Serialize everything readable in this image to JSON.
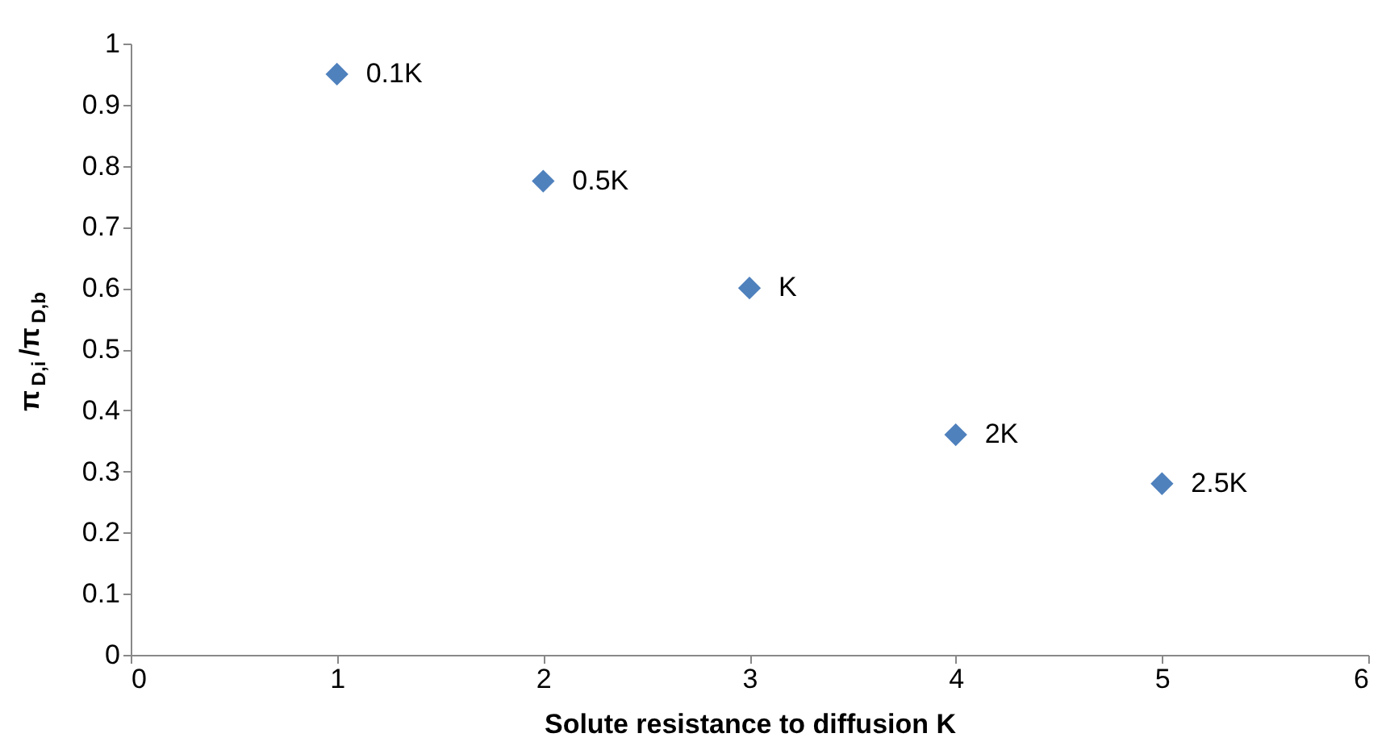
{
  "chart_data": {
    "type": "scatter",
    "xlabel": "Solute resistance to diffusion K",
    "ylabel": "π$_{D,i}$/π$_{D,b}$",
    "x": [
      1,
      2,
      3,
      4,
      5
    ],
    "series": [
      {
        "color": "#4f81bd",
        "values": [
          0.95,
          0.775,
          0.6,
          0.36,
          0.28
        ]
      }
    ],
    "marker": "diamond",
    "xlim": [
      0,
      6
    ],
    "xticks": [
      0,
      1,
      2,
      3,
      4,
      5,
      6
    ],
    "ylim": [
      0,
      1
    ],
    "yticks": [
      0,
      0.1,
      0.2,
      0.3,
      0.4,
      0.5,
      0.6,
      0.7,
      0.8,
      0.9,
      1
    ],
    "grid": false,
    "legend": false,
    "annotations": [
      {
        "text": "0.1K",
        "x": 1,
        "y": 0.95
      },
      {
        "text": "0.5K",
        "x": 2,
        "y": 0.775
      },
      {
        "text": "K",
        "x": 3,
        "y": 0.6
      },
      {
        "text": "2K",
        "x": 4,
        "y": 0.36
      },
      {
        "text": "2.5K",
        "x": 5,
        "y": 0.28
      }
    ]
  }
}
